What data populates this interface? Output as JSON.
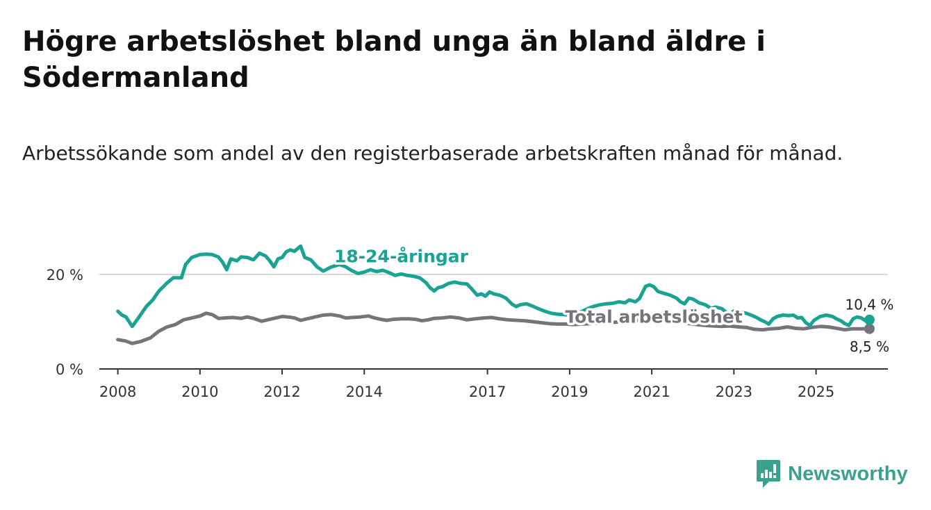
{
  "header": {
    "title": "Högre arbetslöshet bland unga än bland äldre i Södermanland",
    "subtitle": "Arbetssökande som andel av den registerbaserade arbetskraften månad för månad."
  },
  "brand": {
    "name": "Newsworthy",
    "icon": "newsworthy-logo-icon",
    "color": "#3aa08f"
  },
  "chart_data": {
    "type": "line",
    "title": "Högre arbetslöshet bland unga än bland äldre i Södermanland",
    "subtitle": "Arbetssökande som andel av den registerbaserade arbetskraften månad för månad.",
    "xlabel": "",
    "ylabel": "",
    "xlim": [
      2007.55,
      2026.75
    ],
    "ylim": [
      0,
      30
    ],
    "x_ticks": [
      {
        "value": 2008.0,
        "label": "2008"
      },
      {
        "value": 2010.0,
        "label": "2010"
      },
      {
        "value": 2012.0,
        "label": "2012"
      },
      {
        "value": 2014.0,
        "label": "2014"
      },
      {
        "value": 2017.0,
        "label": "2017"
      },
      {
        "value": 2019.0,
        "label": "2019"
      },
      {
        "value": 2021.0,
        "label": "2021"
      },
      {
        "value": 2023.0,
        "label": "2023"
      },
      {
        "value": 2025.0,
        "label": "2025"
      }
    ],
    "y_ticks": [
      {
        "value": 0,
        "label": "0 %",
        "grid": false
      },
      {
        "value": 20,
        "label": "20 %",
        "grid": true
      }
    ],
    "series": [
      {
        "name": "18-24-åringar",
        "label": "18-24-åringar",
        "color": "#1aa394",
        "label_pos": {
          "x": 2014.9,
          "y": 22.6
        },
        "end_label": "10,4 %",
        "points": [
          [
            2008.0,
            12.2
          ],
          [
            2008.1,
            11.4
          ],
          [
            2008.2,
            11.0
          ],
          [
            2008.35,
            9.0
          ],
          [
            2008.5,
            10.8
          ],
          [
            2008.7,
            13.3
          ],
          [
            2008.85,
            14.6
          ],
          [
            2009.0,
            16.5
          ],
          [
            2009.2,
            18.2
          ],
          [
            2009.35,
            19.3
          ],
          [
            2009.55,
            19.3
          ],
          [
            2009.65,
            22.1
          ],
          [
            2009.8,
            23.6
          ],
          [
            2010.0,
            24.2
          ],
          [
            2010.15,
            24.3
          ],
          [
            2010.3,
            24.2
          ],
          [
            2010.45,
            23.7
          ],
          [
            2010.55,
            22.6
          ],
          [
            2010.65,
            21.0
          ],
          [
            2010.75,
            23.3
          ],
          [
            2010.9,
            22.9
          ],
          [
            2011.0,
            23.7
          ],
          [
            2011.15,
            23.6
          ],
          [
            2011.3,
            23.1
          ],
          [
            2011.45,
            24.5
          ],
          [
            2011.6,
            23.9
          ],
          [
            2011.7,
            22.9
          ],
          [
            2011.8,
            21.6
          ],
          [
            2011.9,
            23.3
          ],
          [
            2012.0,
            23.6
          ],
          [
            2012.1,
            24.8
          ],
          [
            2012.2,
            25.2
          ],
          [
            2012.3,
            24.9
          ],
          [
            2012.45,
            26.0
          ],
          [
            2012.55,
            23.6
          ],
          [
            2012.7,
            23.1
          ],
          [
            2012.85,
            21.6
          ],
          [
            2013.0,
            20.7
          ],
          [
            2013.2,
            21.6
          ],
          [
            2013.4,
            22.1
          ],
          [
            2013.55,
            21.6
          ],
          [
            2013.7,
            20.8
          ],
          [
            2013.85,
            20.2
          ],
          [
            2014.0,
            20.5
          ],
          [
            2014.15,
            21.0
          ],
          [
            2014.3,
            20.6
          ],
          [
            2014.45,
            20.9
          ],
          [
            2014.6,
            20.4
          ],
          [
            2014.75,
            19.8
          ],
          [
            2014.9,
            20.1
          ],
          [
            2015.05,
            19.8
          ],
          [
            2015.2,
            19.6
          ],
          [
            2015.35,
            19.3
          ],
          [
            2015.5,
            18.3
          ],
          [
            2015.6,
            17.2
          ],
          [
            2015.7,
            16.5
          ],
          [
            2015.8,
            17.2
          ],
          [
            2015.9,
            17.4
          ],
          [
            2016.05,
            18.1
          ],
          [
            2016.2,
            18.4
          ],
          [
            2016.35,
            18.1
          ],
          [
            2016.5,
            18.0
          ],
          [
            2016.6,
            17.1
          ],
          [
            2016.75,
            15.6
          ],
          [
            2016.85,
            15.9
          ],
          [
            2016.95,
            15.4
          ],
          [
            2017.05,
            16.3
          ],
          [
            2017.15,
            15.9
          ],
          [
            2017.3,
            15.6
          ],
          [
            2017.45,
            15.0
          ],
          [
            2017.6,
            13.7
          ],
          [
            2017.7,
            13.2
          ],
          [
            2017.8,
            13.6
          ],
          [
            2017.95,
            13.8
          ],
          [
            2018.1,
            13.3
          ],
          [
            2018.25,
            12.7
          ],
          [
            2018.4,
            12.2
          ],
          [
            2018.55,
            11.8
          ],
          [
            2018.7,
            11.6
          ],
          [
            2018.85,
            11.5
          ],
          [
            2019.0,
            11.4
          ],
          [
            2019.15,
            11.6
          ],
          [
            2019.3,
            12.2
          ],
          [
            2019.45,
            12.8
          ],
          [
            2019.6,
            13.3
          ],
          [
            2019.75,
            13.6
          ],
          [
            2019.9,
            13.8
          ],
          [
            2020.05,
            13.9
          ],
          [
            2020.2,
            14.2
          ],
          [
            2020.35,
            14.0
          ],
          [
            2020.45,
            14.6
          ],
          [
            2020.6,
            14.2
          ],
          [
            2020.7,
            14.9
          ],
          [
            2020.85,
            17.5
          ],
          [
            2020.95,
            17.8
          ],
          [
            2021.05,
            17.4
          ],
          [
            2021.15,
            16.4
          ],
          [
            2021.3,
            16.0
          ],
          [
            2021.45,
            15.6
          ],
          [
            2021.6,
            15.0
          ],
          [
            2021.7,
            14.2
          ],
          [
            2021.8,
            13.8
          ],
          [
            2021.9,
            15.0
          ],
          [
            2022.0,
            14.8
          ],
          [
            2022.15,
            14.0
          ],
          [
            2022.3,
            13.6
          ],
          [
            2022.45,
            12.8
          ],
          [
            2022.55,
            13.1
          ],
          [
            2022.7,
            12.8
          ],
          [
            2022.8,
            12.1
          ],
          [
            2022.9,
            11.6
          ],
          [
            2023.0,
            12.3
          ],
          [
            2023.15,
            12.0
          ],
          [
            2023.3,
            11.8
          ],
          [
            2023.45,
            11.3
          ],
          [
            2023.55,
            10.9
          ],
          [
            2023.65,
            10.4
          ],
          [
            2023.75,
            10.0
          ],
          [
            2023.85,
            9.5
          ],
          [
            2023.95,
            10.6
          ],
          [
            2024.05,
            11.1
          ],
          [
            2024.2,
            11.4
          ],
          [
            2024.35,
            11.3
          ],
          [
            2024.45,
            11.4
          ],
          [
            2024.55,
            10.8
          ],
          [
            2024.65,
            10.9
          ],
          [
            2024.75,
            9.8
          ],
          [
            2024.85,
            9.2
          ],
          [
            2024.95,
            10.3
          ],
          [
            2025.1,
            11.1
          ],
          [
            2025.25,
            11.4
          ],
          [
            2025.4,
            11.1
          ],
          [
            2025.5,
            10.6
          ],
          [
            2025.6,
            10.2
          ],
          [
            2025.7,
            9.6
          ],
          [
            2025.8,
            9.2
          ],
          [
            2025.9,
            10.6
          ],
          [
            2026.0,
            11.0
          ],
          [
            2026.1,
            10.8
          ],
          [
            2026.2,
            10.2
          ],
          [
            2026.3,
            10.4
          ]
        ]
      },
      {
        "name": "Total arbetslöshet",
        "label": "Total arbetslöshet",
        "color": "#75747a",
        "label_pos": {
          "x": 2021.05,
          "y": 9.8
        },
        "end_label": "8,5 %",
        "points": [
          [
            2008.0,
            6.2
          ],
          [
            2008.2,
            5.9
          ],
          [
            2008.35,
            5.4
          ],
          [
            2008.55,
            5.8
          ],
          [
            2008.8,
            6.6
          ],
          [
            2009.0,
            8.0
          ],
          [
            2009.2,
            8.9
          ],
          [
            2009.4,
            9.4
          ],
          [
            2009.6,
            10.4
          ],
          [
            2009.8,
            10.8
          ],
          [
            2010.0,
            11.2
          ],
          [
            2010.15,
            11.8
          ],
          [
            2010.3,
            11.5
          ],
          [
            2010.45,
            10.7
          ],
          [
            2010.6,
            10.8
          ],
          [
            2010.8,
            10.9
          ],
          [
            2011.0,
            10.7
          ],
          [
            2011.15,
            11.0
          ],
          [
            2011.3,
            10.7
          ],
          [
            2011.5,
            10.1
          ],
          [
            2011.7,
            10.5
          ],
          [
            2011.85,
            10.8
          ],
          [
            2012.0,
            11.1
          ],
          [
            2012.15,
            11.0
          ],
          [
            2012.3,
            10.8
          ],
          [
            2012.45,
            10.3
          ],
          [
            2012.6,
            10.6
          ],
          [
            2012.8,
            11.0
          ],
          [
            2013.0,
            11.4
          ],
          [
            2013.2,
            11.5
          ],
          [
            2013.4,
            11.2
          ],
          [
            2013.55,
            10.8
          ],
          [
            2013.7,
            10.9
          ],
          [
            2013.9,
            11.0
          ],
          [
            2014.1,
            11.2
          ],
          [
            2014.25,
            10.8
          ],
          [
            2014.4,
            10.5
          ],
          [
            2014.55,
            10.3
          ],
          [
            2014.7,
            10.5
          ],
          [
            2014.9,
            10.6
          ],
          [
            2015.1,
            10.6
          ],
          [
            2015.25,
            10.5
          ],
          [
            2015.4,
            10.2
          ],
          [
            2015.55,
            10.4
          ],
          [
            2015.7,
            10.7
          ],
          [
            2015.9,
            10.8
          ],
          [
            2016.1,
            11.0
          ],
          [
            2016.3,
            10.8
          ],
          [
            2016.5,
            10.4
          ],
          [
            2016.7,
            10.6
          ],
          [
            2016.9,
            10.8
          ],
          [
            2017.1,
            10.9
          ],
          [
            2017.3,
            10.6
          ],
          [
            2017.5,
            10.4
          ],
          [
            2017.7,
            10.3
          ],
          [
            2017.9,
            10.2
          ],
          [
            2018.1,
            10.0
          ],
          [
            2018.3,
            9.8
          ],
          [
            2018.5,
            9.6
          ],
          [
            2018.7,
            9.5
          ],
          [
            2018.9,
            9.5
          ],
          [
            2019.1,
            9.4
          ],
          [
            2019.3,
            9.5
          ],
          [
            2019.5,
            9.6
          ],
          [
            2019.7,
            9.7
          ],
          [
            2019.9,
            9.8
          ],
          [
            2020.1,
            9.9
          ],
          [
            2020.3,
            10.0
          ],
          [
            2020.5,
            10.2
          ],
          [
            2020.7,
            10.3
          ],
          [
            2020.9,
            10.4
          ],
          [
            2021.1,
            10.3
          ],
          [
            2021.3,
            10.2
          ],
          [
            2021.5,
            10.0
          ],
          [
            2021.7,
            9.8
          ],
          [
            2021.9,
            9.6
          ],
          [
            2022.1,
            9.4
          ],
          [
            2022.3,
            9.2
          ],
          [
            2022.5,
            9.1
          ],
          [
            2022.7,
            9.0
          ],
          [
            2022.9,
            9.1
          ],
          [
            2023.1,
            8.9
          ],
          [
            2023.3,
            8.8
          ],
          [
            2023.5,
            8.4
          ],
          [
            2023.7,
            8.3
          ],
          [
            2023.9,
            8.5
          ],
          [
            2024.1,
            8.6
          ],
          [
            2024.3,
            8.9
          ],
          [
            2024.5,
            8.6
          ],
          [
            2024.7,
            8.5
          ],
          [
            2024.9,
            8.8
          ],
          [
            2025.1,
            9.0
          ],
          [
            2025.3,
            8.9
          ],
          [
            2025.5,
            8.6
          ],
          [
            2025.7,
            8.3
          ],
          [
            2025.9,
            8.5
          ],
          [
            2026.1,
            8.5
          ],
          [
            2026.3,
            8.5
          ]
        ]
      }
    ]
  }
}
